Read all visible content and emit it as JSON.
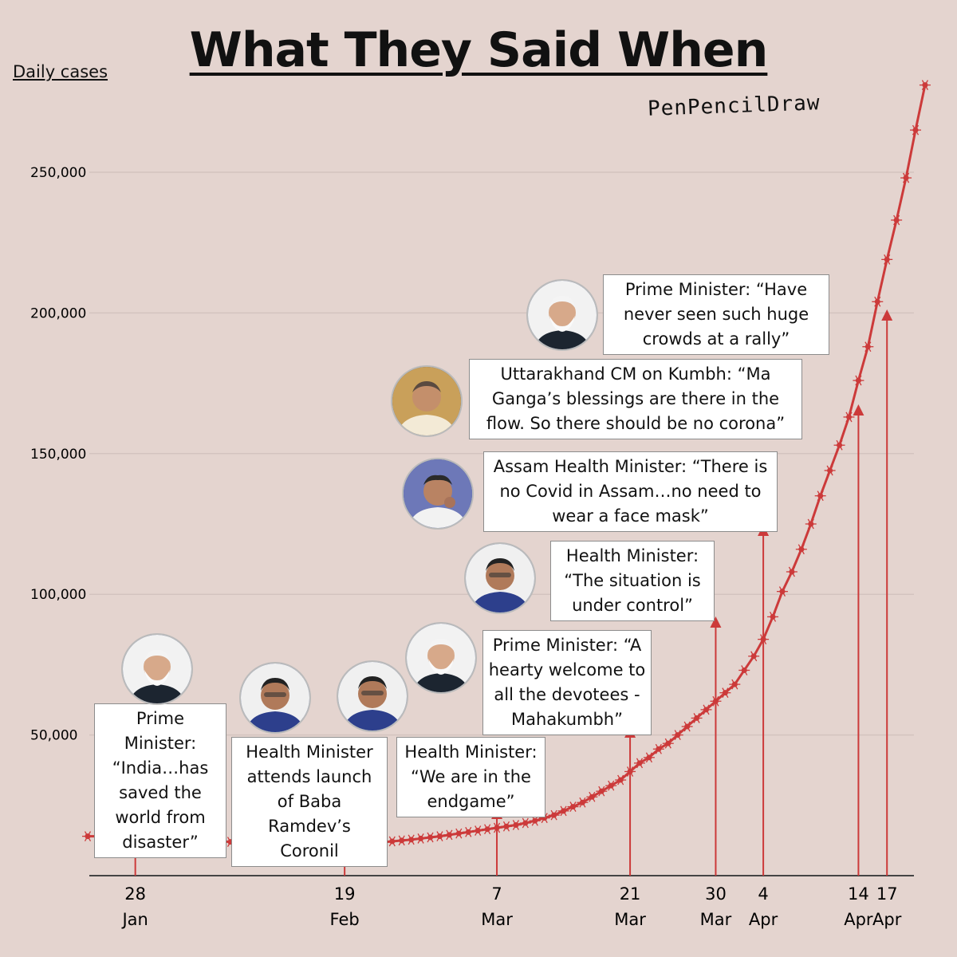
{
  "title": "What They Said When",
  "ylabel": "Daily cases",
  "brand": "PenPencilDraw",
  "colors": {
    "background": "#e4d4cf",
    "line": "#cc3a3a",
    "annotation": "#cc3a3a"
  },
  "annotations": [
    {
      "id": "q1",
      "date": "28 Jan",
      "speaker_icon": "modi-portrait-icon",
      "text": "Prime Minister: “India…has saved the world from disaster”"
    },
    {
      "id": "q2",
      "date": "19 Feb",
      "speaker_icon": "harsh-vardhan-portrait-icon",
      "text": "Health Minister attends launch of Baba Ramdev’s Coronil"
    },
    {
      "id": "q3",
      "date": "7 Mar",
      "speaker_icon": "harsh-vardhan-portrait-icon",
      "text": "Health Minister: “We are in the endgame”"
    },
    {
      "id": "q4",
      "date": "21 Mar",
      "speaker_icon": "modi-portrait-icon",
      "text": "Prime Minister: “A hearty welcome to all the devotees - Mahakumbh”"
    },
    {
      "id": "q5",
      "date": "30 Mar",
      "speaker_icon": "harsh-vardhan-portrait-icon",
      "text": "Health Minister: “The situation is under control”"
    },
    {
      "id": "q6",
      "date": "4 Apr",
      "speaker_icon": "himanta-portrait-icon",
      "text": "Assam Health Minister: “There is no Covid in Assam…no need to wear a face mask”"
    },
    {
      "id": "q7",
      "date": "14 Apr",
      "speaker_icon": "rawat-portrait-icon",
      "text": "Uttarakhand CM on Kumbh: “Ma Ganga’s blessings are there in the flow. So there should be no corona”"
    },
    {
      "id": "q8",
      "date": "17 Apr",
      "speaker_icon": "modi-portrait-icon",
      "text": "Prime Minister: “Have never seen such huge crowds at a rally”"
    }
  ],
  "chart_data": {
    "type": "line",
    "ylabel": "Daily cases",
    "yticks": [
      50000,
      100000,
      150000,
      200000,
      250000
    ],
    "ytick_labels": [
      "50,000",
      "100,000",
      "150,000",
      "200,000",
      "250,000"
    ],
    "ylim": [
      0,
      280000
    ],
    "grid": true,
    "x_labels": [
      {
        "day": "28",
        "month": "Jan"
      },
      {
        "day": "19",
        "month": "Feb"
      },
      {
        "day": "7",
        "month": "Mar"
      },
      {
        "day": "21",
        "month": "Mar"
      },
      {
        "day": "30",
        "month": "Mar"
      },
      {
        "day": "4",
        "month": "Apr"
      },
      {
        "day": "14",
        "month": "Apr"
      },
      {
        "day": "17",
        "month": "Apr"
      }
    ],
    "x_label_day_offsets": [
      5,
      27,
      43,
      57,
      66,
      71,
      81,
      84
    ],
    "x_range_days": [
      0,
      87
    ],
    "series": [
      {
        "values": [
          14000,
          14000,
          13800,
          13700,
          13500,
          13400,
          13300,
          13200,
          13100,
          13000,
          12900,
          12800,
          12600,
          12400,
          12200,
          12000,
          11800,
          11600,
          11500,
          11400,
          11300,
          11200,
          11100,
          11000,
          11000,
          11000,
          11100,
          11200,
          11300,
          11500,
          11700,
          11900,
          12200,
          12500,
          12800,
          13200,
          13600,
          14000,
          14500,
          15000,
          15500,
          16000,
          16500,
          17000,
          17500,
          18000,
          18700,
          19500,
          20500,
          21500,
          23000,
          24500,
          26000,
          28000,
          30000,
          32000,
          34000,
          37000,
          40000,
          42000,
          45000,
          47000,
          50000,
          53000,
          56000,
          59000,
          62000,
          65000,
          68000,
          73000,
          78000,
          84000,
          92000,
          101000,
          108000,
          116000,
          125000,
          135000,
          144000,
          153000,
          163000,
          176000,
          188000,
          204000,
          219000,
          233000,
          248000,
          265000,
          281000
        ]
      }
    ]
  }
}
